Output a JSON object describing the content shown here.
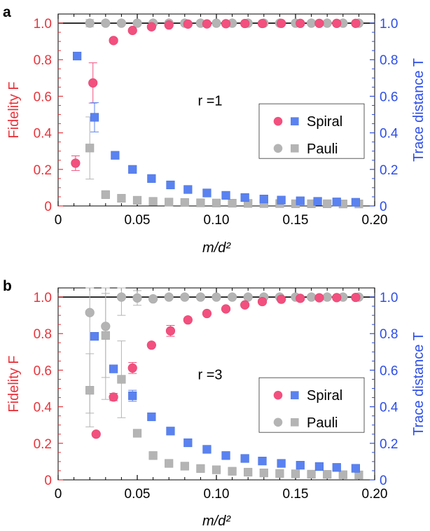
{
  "colors": {
    "spiral_fidelity": "#f2507e",
    "spiral_trace": "#5a82f0",
    "pauli": "#b4b4b4",
    "left_axis": "#e8343c",
    "right_axis": "#2d4ee6",
    "grid_line": "#000000"
  },
  "chart_data": [
    {
      "type": "scatter",
      "panel_label": "a",
      "annotation": "r =1",
      "xlabel": "m/d²",
      "ylabel_left": "Fidelity F",
      "ylabel_right": "Trace distance T",
      "xlim": [
        0,
        0.2
      ],
      "ylim": [
        0,
        1.05
      ],
      "x_ticks": [
        "0",
        "0.05",
        "0.10",
        "0.15",
        "0.20"
      ],
      "y_ticks": [
        "0",
        "0.2",
        "0.4",
        "0.6",
        "0.8",
        "1.0"
      ],
      "legend": [
        "Spiral",
        "Pauli"
      ],
      "series": [
        {
          "name": "Spiral fidelity",
          "marker": "circle",
          "x": [
            0.011,
            0.022,
            0.035,
            0.047,
            0.059,
            0.07,
            0.082,
            0.094,
            0.106,
            0.118,
            0.129,
            0.141,
            0.153,
            0.165,
            0.176,
            0.188
          ],
          "y": [
            0.234,
            0.673,
            0.905,
            0.96,
            0.98,
            0.99,
            0.995,
            0.996,
            0.997,
            0.998,
            0.998,
            0.999,
            0.999,
            0.999,
            0.999,
            0.999
          ],
          "err": [
            0.04,
            0.11,
            0.01,
            0,
            0,
            0,
            0,
            0,
            0,
            0,
            0,
            0,
            0,
            0,
            0,
            0
          ]
        },
        {
          "name": "Spiral trace distance",
          "marker": "square",
          "x": [
            0.012,
            0.023,
            0.036,
            0.047,
            0.059,
            0.071,
            0.082,
            0.094,
            0.106,
            0.118,
            0.13,
            0.141,
            0.153,
            0.164,
            0.176,
            0.188
          ],
          "y": [
            0.82,
            0.485,
            0.277,
            0.2,
            0.15,
            0.115,
            0.09,
            0.071,
            0.058,
            0.046,
            0.038,
            0.032,
            0.028,
            0.025,
            0.022,
            0.02
          ],
          "err": [
            0.02,
            0.08,
            0,
            0,
            0,
            0,
            0,
            0,
            0,
            0,
            0,
            0,
            0,
            0,
            0,
            0
          ]
        },
        {
          "name": "Pauli fidelity",
          "marker": "circle",
          "x": [
            0.02,
            0.03,
            0.04,
            0.05,
            0.06,
            0.07,
            0.08,
            0.09,
            0.1,
            0.11,
            0.12,
            0.13,
            0.14,
            0.15,
            0.16,
            0.17,
            0.18,
            0.19
          ],
          "y": [
            1.0,
            1.0,
            1.0,
            1.0,
            1.0,
            1.0,
            1.0,
            1.0,
            1.0,
            1.0,
            1.0,
            1.0,
            1.0,
            1.0,
            1.0,
            1.0,
            1.0,
            1.0
          ],
          "err": [
            0.02,
            0,
            0,
            0,
            0,
            0,
            0,
            0,
            0,
            0,
            0,
            0,
            0,
            0,
            0,
            0,
            0,
            0
          ]
        },
        {
          "name": "Pauli trace distance",
          "marker": "square",
          "x": [
            0.02,
            0.03,
            0.04,
            0.05,
            0.06,
            0.07,
            0.08,
            0.09,
            0.1,
            0.11,
            0.12,
            0.13,
            0.14,
            0.15,
            0.16,
            0.17,
            0.18,
            0.19
          ],
          "y": [
            0.317,
            0.062,
            0.042,
            0.031,
            0.025,
            0.021,
            0.019,
            0.017,
            0.016,
            0.015,
            0.014,
            0.013,
            0.013,
            0.012,
            0.012,
            0.012,
            0.011,
            0.011
          ],
          "err": [
            0.17,
            0,
            0,
            0,
            0,
            0,
            0,
            0,
            0,
            0,
            0,
            0,
            0,
            0,
            0,
            0,
            0,
            0
          ]
        }
      ]
    },
    {
      "type": "scatter",
      "panel_label": "b",
      "annotation": "r =3",
      "xlabel": "m/d²",
      "ylabel_left": "Fidelity F",
      "ylabel_right": "Trace distance T",
      "xlim": [
        0,
        0.2
      ],
      "ylim": [
        0,
        1.05
      ],
      "x_ticks": [
        "0",
        "0.05",
        "0.10",
        "0.15",
        "0.20"
      ],
      "y_ticks": [
        "0",
        "0.2",
        "0.4",
        "0.6",
        "0.8",
        "1.0"
      ],
      "legend": [
        "Spiral",
        "Pauli"
      ],
      "series": [
        {
          "name": "Spiral fidelity",
          "marker": "circle",
          "x": [
            0.024,
            0.035,
            0.047,
            0.059,
            0.071,
            0.082,
            0.094,
            0.106,
            0.118,
            0.129,
            0.141,
            0.153,
            0.165,
            0.176,
            0.188
          ],
          "y": [
            0.25,
            0.453,
            0.612,
            0.737,
            0.815,
            0.875,
            0.91,
            0.935,
            0.957,
            0.975,
            0.988,
            0.993,
            0.996,
            0.997,
            0.998
          ],
          "err": [
            0,
            0.02,
            0.03,
            0,
            0.03,
            0,
            0,
            0,
            0,
            0,
            0,
            0,
            0,
            0,
            0
          ]
        },
        {
          "name": "Spiral trace distance",
          "marker": "square",
          "x": [
            0.023,
            0.035,
            0.047,
            0.059,
            0.071,
            0.082,
            0.094,
            0.106,
            0.118,
            0.129,
            0.141,
            0.153,
            0.165,
            0.176,
            0.188
          ],
          "y": [
            0.785,
            0.607,
            0.46,
            0.345,
            0.267,
            0.203,
            0.167,
            0.133,
            0.117,
            0.103,
            0.09,
            0.08,
            0.073,
            0.068,
            0.063
          ],
          "err": [
            0,
            0,
            0.03,
            0,
            0.02,
            0,
            0,
            0,
            0,
            0,
            0,
            0,
            0,
            0,
            0
          ]
        },
        {
          "name": "Pauli fidelity",
          "marker": "circle",
          "x": [
            0.02,
            0.03,
            0.04,
            0.05,
            0.06,
            0.07,
            0.08,
            0.09,
            0.1,
            0.11,
            0.12,
            0.13,
            0.14,
            0.15,
            0.16,
            0.17,
            0.18,
            0.19
          ],
          "y": [
            0.915,
            0.84,
            1.0,
            0.995,
            0.99,
            1.0,
            1.0,
            1.0,
            1.0,
            1.0,
            1.0,
            1.0,
            1.0,
            1.0,
            1.0,
            1.0,
            1.0,
            1.0
          ],
          "err": [
            0.55,
            0.4,
            0.1,
            0.04,
            0,
            0,
            0,
            0,
            0,
            0,
            0,
            0,
            0,
            0,
            0,
            0,
            0,
            0
          ]
        },
        {
          "name": "Pauli trace distance",
          "marker": "square",
          "x": [
            0.02,
            0.03,
            0.04,
            0.05,
            0.06,
            0.07,
            0.08,
            0.09,
            0.1,
            0.11,
            0.12,
            0.13,
            0.14,
            0.15,
            0.16,
            0.17,
            0.18,
            0.19
          ],
          "y": [
            0.49,
            0.79,
            0.55,
            0.255,
            0.133,
            0.09,
            0.075,
            0.062,
            0.055,
            0.047,
            0.042,
            0.038,
            0.035,
            0.033,
            0.031,
            0.03,
            0.028,
            0.027
          ],
          "err": [
            0.2,
            0.23,
            0.21,
            0,
            0,
            0,
            0,
            0,
            0,
            0,
            0,
            0,
            0,
            0,
            0,
            0,
            0,
            0
          ]
        }
      ]
    }
  ]
}
